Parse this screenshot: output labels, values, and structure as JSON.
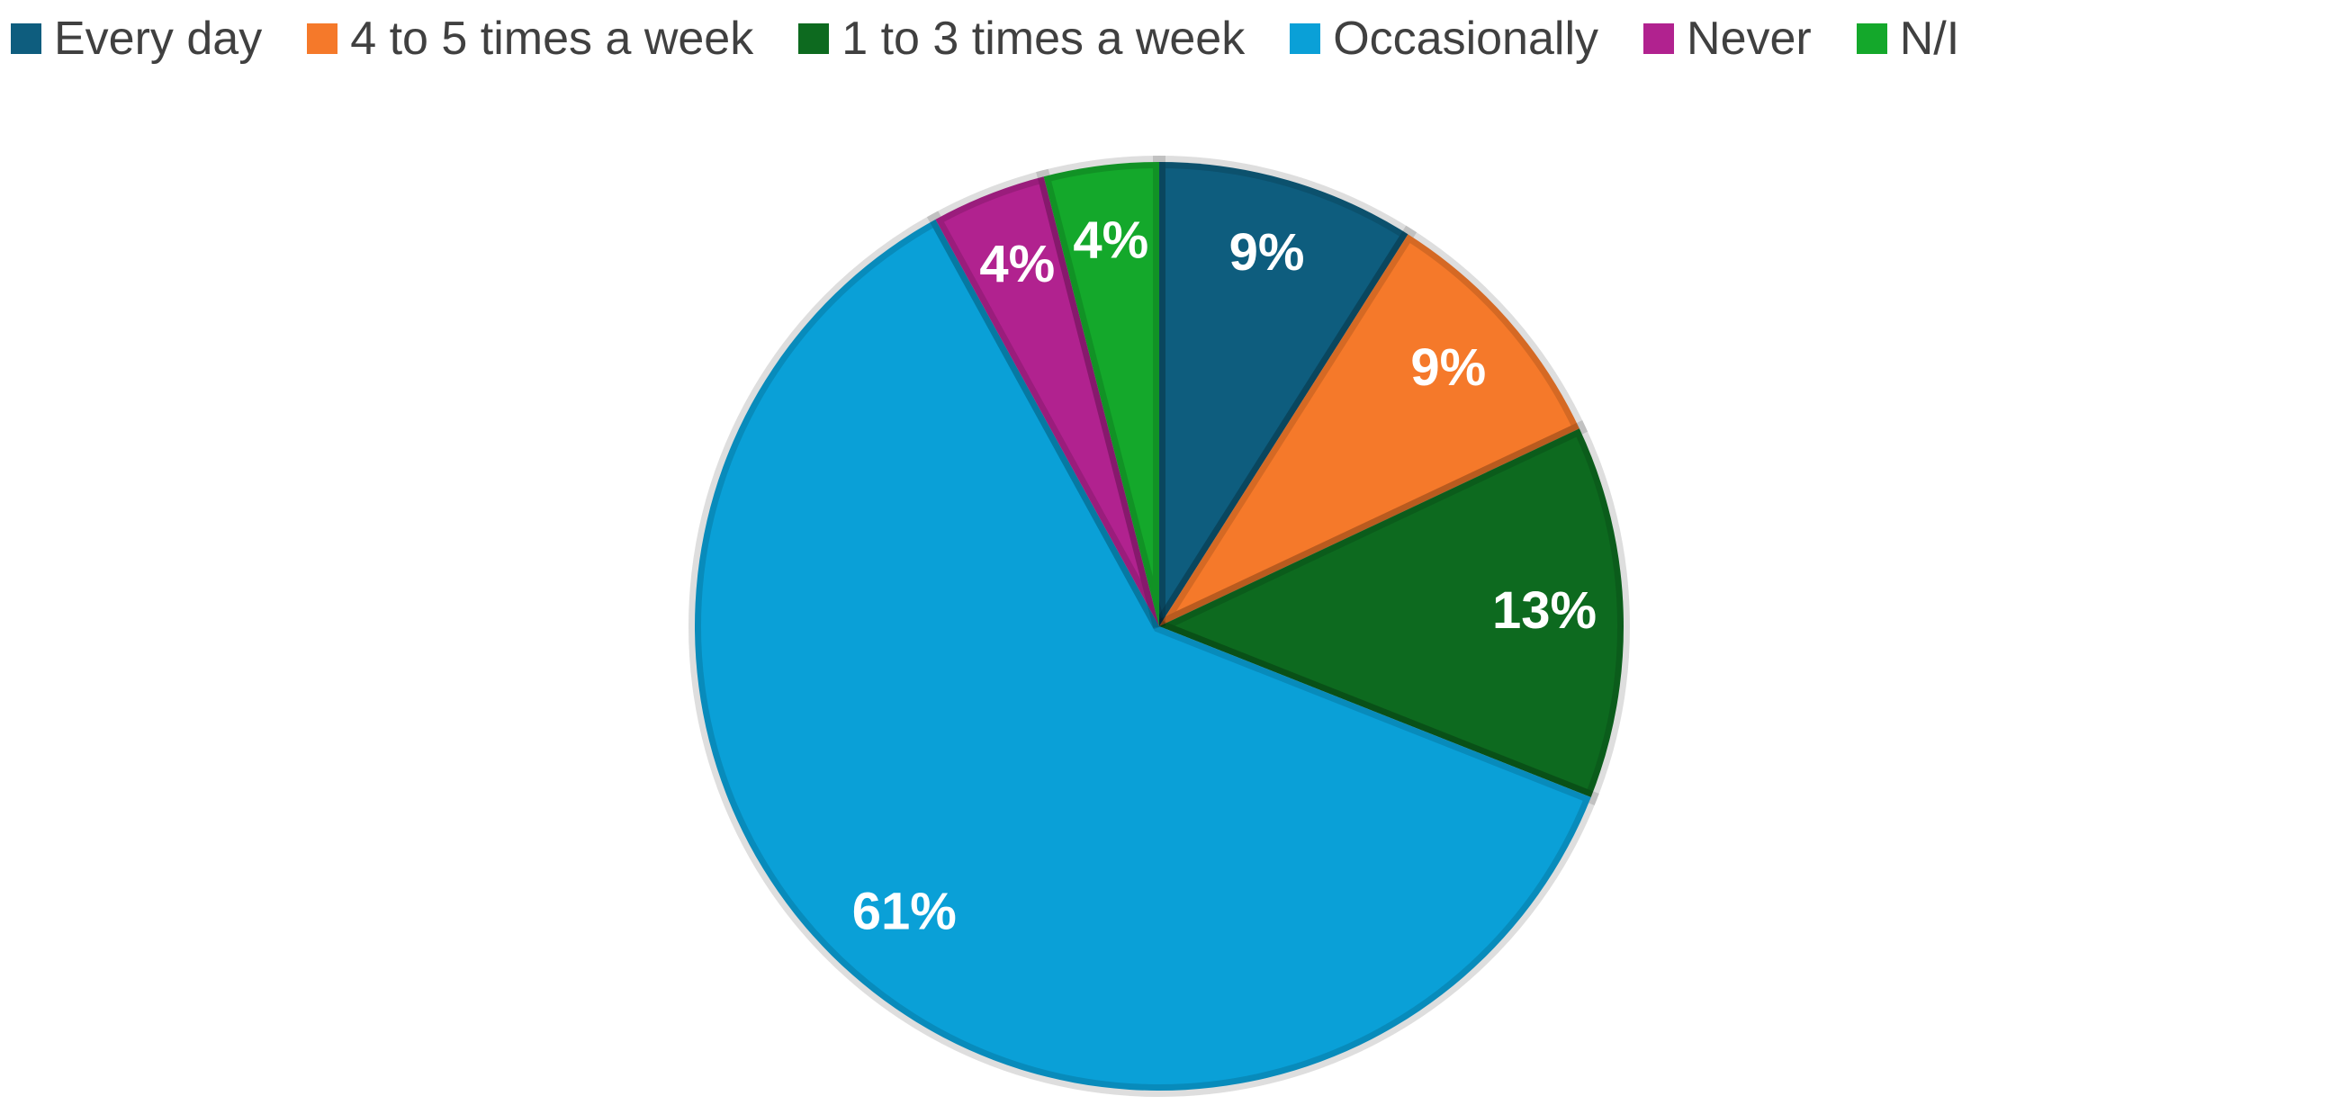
{
  "chart_data": {
    "type": "pie",
    "categories": [
      "Every day",
      "4 to 5 times a week",
      "1 to 3 times a week",
      "Occasionally",
      "Never",
      "N/I"
    ],
    "values": [
      9,
      9,
      13,
      61,
      4,
      4
    ],
    "value_labels": [
      "9%",
      "9%",
      "13%",
      "61%",
      "4%",
      "4%"
    ],
    "colors": [
      "#0e5d7e",
      "#f5792a",
      "#0d6a1f",
      "#0aa0d7",
      "#b1228f",
      "#14a82b"
    ],
    "legend": "top"
  }
}
